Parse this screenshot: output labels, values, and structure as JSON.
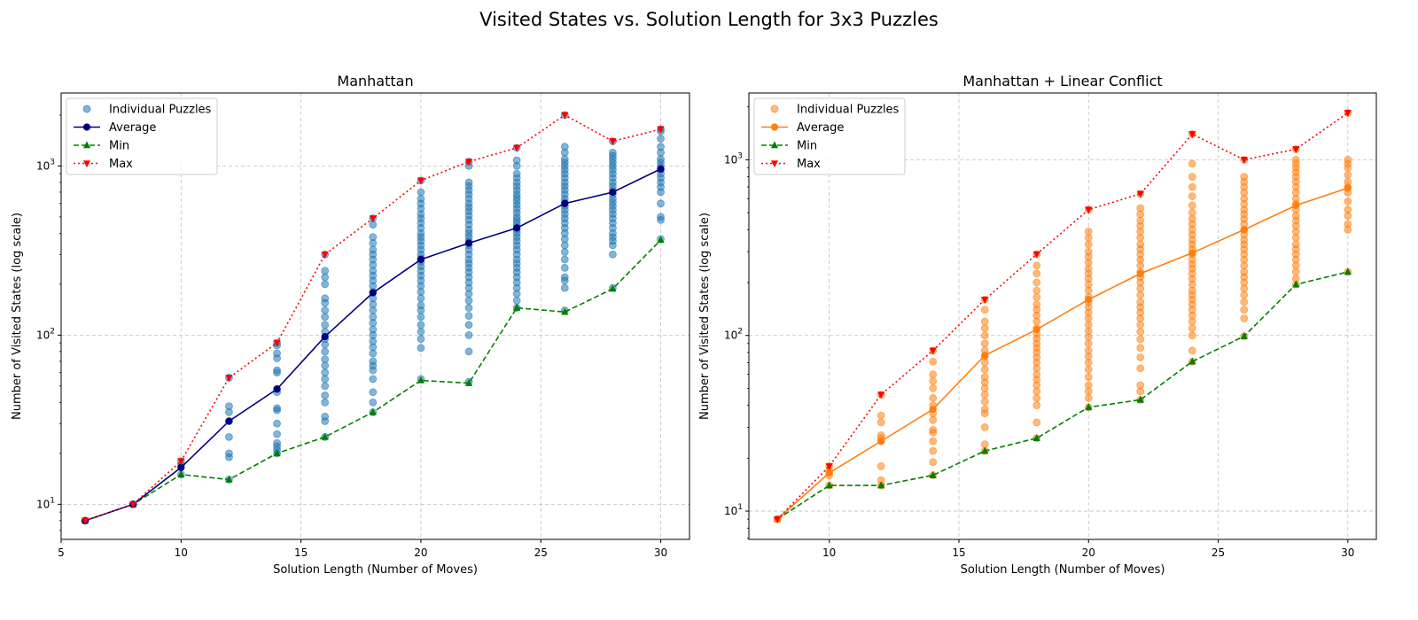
{
  "figure": {
    "suptitle": "Visited States vs. Solution Length for 3x3 Puzzles"
  },
  "chart_data": [
    {
      "type": "scatter",
      "title": "Manhattan",
      "xlabel": "Solution Length (Number of Moves)",
      "ylabel": "Number of Visited States (log scale)",
      "xlim": [
        5,
        31.2
      ],
      "ylim": [
        6.2,
        2700
      ],
      "yscale": "log",
      "xticks": [
        5,
        10,
        15,
        20,
        25,
        30
      ],
      "yticks": [
        {
          "value": 10,
          "base": "10",
          "exp": "1"
        },
        {
          "value": 100,
          "base": "10",
          "exp": "2"
        },
        {
          "value": 1000,
          "base": "10",
          "exp": "3"
        }
      ],
      "grid": true,
      "legend_position": "upper-left",
      "legend": [
        "Individual Puzzles",
        "Average",
        "Min",
        "Max"
      ],
      "colors": {
        "scatter": "#1f77b4",
        "average": "#000080",
        "min": "#008000",
        "max": "#ff0000"
      },
      "scatter": [
        {
          "x": 6,
          "y": [
            8
          ]
        },
        {
          "x": 8,
          "y": [
            10
          ]
        },
        {
          "x": 10,
          "y": [
            15,
            17,
            18
          ]
        },
        {
          "x": 12,
          "y": [
            14,
            19,
            20,
            25,
            31,
            35,
            38,
            56
          ]
        },
        {
          "x": 14,
          "y": [
            20,
            21,
            22,
            23,
            26,
            30,
            36,
            37,
            46,
            48,
            60,
            62,
            73,
            78,
            87,
            90
          ]
        },
        {
          "x": 16,
          "y": [
            25,
            31,
            33,
            40,
            44,
            50,
            55,
            60,
            66,
            72,
            80,
            88,
            95,
            105,
            115,
            128,
            140,
            155,
            165,
            200,
            220,
            240,
            300
          ]
        },
        {
          "x": 18,
          "y": [
            35,
            40,
            46,
            55,
            62,
            66,
            70,
            78,
            85,
            92,
            100,
            108,
            118,
            128,
            140,
            152,
            165,
            180,
            195,
            210,
            225,
            240,
            260,
            280,
            300,
            320,
            350,
            380,
            450,
            490
          ]
        },
        {
          "x": 20,
          "y": [
            55,
            84,
            95,
            105,
            115,
            128,
            140,
            150,
            165,
            180,
            195,
            210,
            225,
            240,
            255,
            270,
            285,
            300,
            320,
            340,
            360,
            380,
            400,
            430,
            460,
            490,
            520,
            560,
            600,
            640,
            700,
            820
          ]
        },
        {
          "x": 22,
          "y": [
            53,
            80,
            100,
            115,
            130,
            145,
            160,
            175,
            190,
            205,
            220,
            235,
            250,
            265,
            280,
            300,
            320,
            340,
            360,
            380,
            400,
            420,
            450,
            480,
            510,
            540,
            570,
            600,
            640,
            680,
            720,
            760,
            800,
            1000,
            1060
          ]
        },
        {
          "x": 24,
          "y": [
            145,
            160,
            175,
            190,
            205,
            220,
            235,
            250,
            265,
            280,
            300,
            320,
            340,
            360,
            380,
            400,
            420,
            440,
            460,
            480,
            500,
            530,
            560,
            590,
            620,
            650,
            680,
            720,
            760,
            800,
            850,
            900,
            1000,
            1080,
            1280
          ]
        },
        {
          "x": 26,
          "y": [
            140,
            190,
            210,
            220,
            250,
            280,
            310,
            340,
            370,
            400,
            430,
            460,
            490,
            520,
            550,
            580,
            610,
            640,
            680,
            720,
            760,
            800,
            850,
            900,
            950,
            1000,
            1050,
            1100,
            1200,
            1300,
            2000
          ]
        },
        {
          "x": 28,
          "y": [
            190,
            300,
            340,
            360,
            380,
            400,
            430,
            460,
            490,
            520,
            550,
            580,
            610,
            640,
            680,
            720,
            760,
            800,
            850,
            900,
            950,
            1000,
            1050,
            1100,
            1150,
            1200,
            1400
          ]
        },
        {
          "x": 30,
          "y": [
            370,
            480,
            500,
            600,
            700,
            750,
            800,
            850,
            900,
            950,
            1000,
            1050,
            1100,
            1200,
            1300,
            1450,
            1600,
            1650
          ]
        }
      ],
      "series": [
        {
          "name": "Average",
          "style": "solid",
          "marker": "circle",
          "x": [
            6,
            8,
            10,
            12,
            14,
            16,
            18,
            20,
            22,
            24,
            26,
            28,
            30
          ],
          "y": [
            8,
            10,
            16.5,
            31,
            48,
            98,
            178,
            280,
            350,
            430,
            600,
            700,
            960
          ]
        },
        {
          "name": "Min",
          "style": "dashed",
          "marker": "triangle-up",
          "x": [
            6,
            8,
            10,
            12,
            14,
            16,
            18,
            20,
            22,
            24,
            26,
            28,
            30
          ],
          "y": [
            8,
            10,
            15,
            14,
            20,
            25,
            35,
            54,
            52,
            145,
            137,
            188,
            365
          ]
        },
        {
          "name": "Max",
          "style": "dotted",
          "marker": "triangle-down",
          "x": [
            6,
            8,
            10,
            12,
            14,
            16,
            18,
            20,
            22,
            24,
            26,
            28,
            30
          ],
          "y": [
            8,
            10,
            18,
            56,
            90,
            300,
            490,
            820,
            1060,
            1280,
            2000,
            1400,
            1650
          ]
        }
      ]
    },
    {
      "type": "scatter",
      "title": "Manhattan + Linear Conflict",
      "xlabel": "Solution Length (Number of Moves)",
      "ylabel": "Number of Visited States (log scale)",
      "xlim": [
        6.9,
        31.1
      ],
      "ylim": [
        6.9,
        2400
      ],
      "yscale": "log",
      "xticks": [
        10,
        15,
        20,
        25,
        30
      ],
      "yticks": [
        {
          "value": 10,
          "base": "10",
          "exp": "1"
        },
        {
          "value": 100,
          "base": "10",
          "exp": "2"
        },
        {
          "value": 1000,
          "base": "10",
          "exp": "3"
        }
      ],
      "grid": true,
      "legend_position": "upper-left",
      "legend": [
        "Individual Puzzles",
        "Average",
        "Min",
        "Max"
      ],
      "colors": {
        "scatter": "#ff7f0e",
        "average": "#ff7f0e",
        "min": "#008000",
        "max": "#ff0000"
      },
      "scatter": [
        {
          "x": 8,
          "y": [
            9
          ]
        },
        {
          "x": 10,
          "y": [
            14,
            16,
            17,
            18
          ]
        },
        {
          "x": 12,
          "y": [
            14,
            15,
            18,
            25,
            26,
            27,
            32,
            35,
            46
          ]
        },
        {
          "x": 14,
          "y": [
            16,
            19,
            22,
            25,
            28,
            29,
            33,
            36,
            40,
            44,
            50,
            55,
            60,
            71,
            82
          ]
        },
        {
          "x": 16,
          "y": [
            22,
            24,
            30,
            36,
            38,
            42,
            46,
            50,
            54,
            58,
            64,
            70,
            76,
            82,
            90,
            100,
            110,
            120,
            140,
            160
          ]
        },
        {
          "x": 18,
          "y": [
            26,
            32,
            40,
            44,
            48,
            52,
            56,
            60,
            65,
            70,
            75,
            80,
            85,
            90,
            96,
            102,
            110,
            120,
            130,
            140,
            150,
            165,
            180,
            200,
            225,
            250,
            290
          ]
        },
        {
          "x": 20,
          "y": [
            39,
            44,
            48,
            52,
            58,
            64,
            70,
            76,
            82,
            90,
            98,
            106,
            115,
            125,
            135,
            145,
            155,
            165,
            180,
            195,
            210,
            225,
            240,
            260,
            280,
            300,
            330,
            360,
            390,
            520
          ]
        },
        {
          "x": 22,
          "y": [
            43,
            48,
            52,
            65,
            75,
            85,
            95,
            105,
            115,
            125,
            135,
            145,
            155,
            170,
            185,
            200,
            215,
            230,
            250,
            270,
            290,
            310,
            330,
            360,
            390,
            420,
            450,
            490,
            530,
            640
          ]
        },
        {
          "x": 24,
          "y": [
            71,
            82,
            100,
            110,
            120,
            130,
            140,
            150,
            160,
            170,
            180,
            195,
            210,
            225,
            240,
            255,
            270,
            290,
            310,
            330,
            350,
            375,
            400,
            430,
            460,
            500,
            550,
            620,
            700,
            800,
            950,
            1400
          ]
        },
        {
          "x": 26,
          "y": [
            99,
            125,
            140,
            155,
            170,
            185,
            200,
            215,
            230,
            250,
            270,
            290,
            310,
            330,
            350,
            375,
            400,
            430,
            460,
            490,
            520,
            560,
            600,
            650,
            700,
            750,
            800,
            1000
          ]
        },
        {
          "x": 28,
          "y": [
            195,
            210,
            230,
            250,
            270,
            290,
            310,
            330,
            360,
            390,
            420,
            450,
            480,
            520,
            560,
            600,
            650,
            700,
            750,
            800,
            850,
            900,
            950,
            1000,
            1150
          ]
        },
        {
          "x": 30,
          "y": [
            230,
            400,
            430,
            480,
            520,
            580,
            650,
            700,
            750,
            820,
            900,
            950,
            1000,
            1850
          ]
        }
      ],
      "series": [
        {
          "name": "Average",
          "style": "solid",
          "marker": "circle",
          "x": [
            8,
            10,
            12,
            14,
            16,
            18,
            20,
            22,
            24,
            26,
            28,
            30
          ],
          "y": [
            9,
            16.5,
            25,
            38,
            77,
            108,
            160,
            225,
            295,
            400,
            550,
            690
          ]
        },
        {
          "name": "Min",
          "style": "dashed",
          "marker": "triangle-up",
          "x": [
            8,
            10,
            12,
            14,
            16,
            18,
            20,
            22,
            24,
            26,
            28,
            30
          ],
          "y": [
            9,
            14,
            14,
            16,
            22,
            26,
            39,
            43,
            71,
            99,
            195,
            230
          ]
        },
        {
          "name": "Max",
          "style": "dotted",
          "marker": "triangle-down",
          "x": [
            8,
            10,
            12,
            14,
            16,
            18,
            20,
            22,
            24,
            26,
            28,
            30
          ],
          "y": [
            9,
            18,
            46,
            82,
            160,
            290,
            520,
            640,
            1400,
            1000,
            1150,
            1850
          ]
        }
      ]
    }
  ]
}
